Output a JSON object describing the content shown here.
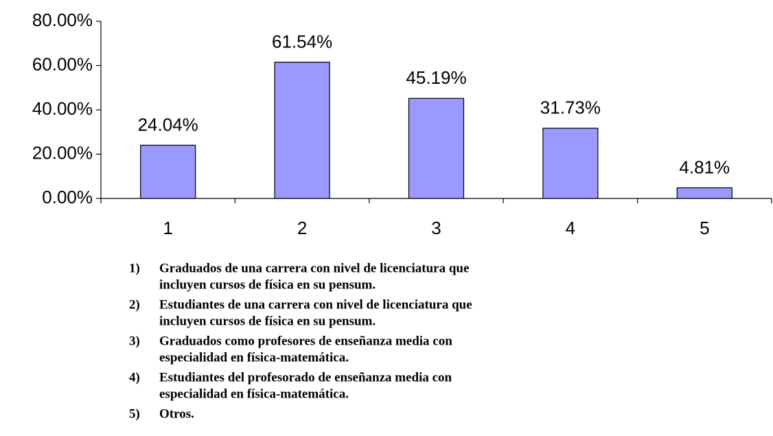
{
  "chart_data": {
    "type": "bar",
    "categories": [
      "1",
      "2",
      "3",
      "4",
      "5"
    ],
    "values": [
      24.04,
      61.54,
      45.19,
      31.73,
      4.81
    ],
    "value_labels": [
      "24.04%",
      "61.54%",
      "45.19%",
      "31.73%",
      "4.81%"
    ],
    "color": "#9999ff",
    "ylim": [
      0,
      80
    ],
    "yticks": [
      {
        "value": 0,
        "label": "0.00%"
      },
      {
        "value": 20,
        "label": "20.00%"
      },
      {
        "value": 40,
        "label": "40.00%"
      },
      {
        "value": 60,
        "label": "60.00%"
      },
      {
        "value": 80,
        "label": "80.00%"
      }
    ],
    "grid": false
  },
  "notes": [
    {
      "marker": "1)",
      "lines": [
        "Graduados de una carrera con nivel de licenciatura que",
        "incluyen cursos de física en su pensum."
      ]
    },
    {
      "marker": "2)",
      "lines": [
        "Estudiantes de una carrera con nivel de licenciatura que",
        "incluyen cursos de física en su pensum."
      ]
    },
    {
      "marker": "3)",
      "lines": [
        "Graduados como profesores de enseñanza media con",
        "especialidad en física-matemática."
      ]
    },
    {
      "marker": "4)",
      "lines": [
        "Estudiantes del profesorado de enseñanza media con",
        "especialidad en física-matemática."
      ]
    },
    {
      "marker": "5)",
      "lines": [
        "Otros."
      ]
    }
  ]
}
